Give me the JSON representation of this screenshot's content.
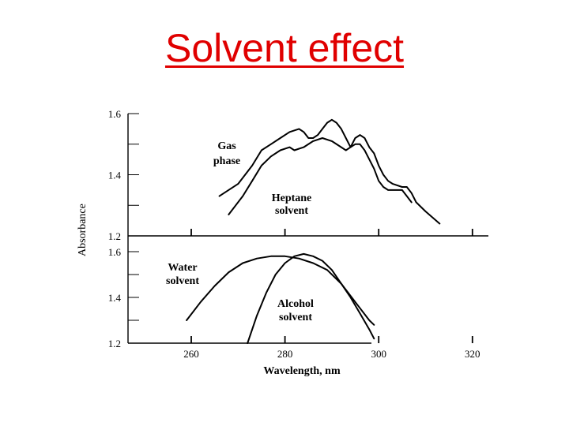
{
  "slide": {
    "title": "Solvent effect"
  },
  "chart_data": [
    {
      "type": "line",
      "panel": "upper",
      "ylabel": "Absorbance",
      "xlim": [
        250,
        325
      ],
      "ylim": [
        1.2,
        1.6
      ],
      "y_ticks": [
        "1.6",
        "1.4",
        "1.2"
      ],
      "grid": false,
      "series": [
        {
          "name": "Gas phase",
          "points": [
            [
              266,
              1.33
            ],
            [
              270,
              1.37
            ],
            [
              273,
              1.43
            ],
            [
              275,
              1.48
            ],
            [
              277,
              1.5
            ],
            [
              279,
              1.52
            ],
            [
              281,
              1.54
            ],
            [
              283,
              1.55
            ],
            [
              284,
              1.54
            ],
            [
              285,
              1.52
            ],
            [
              286,
              1.52
            ],
            [
              287,
              1.53
            ],
            [
              288,
              1.55
            ],
            [
              289,
              1.57
            ],
            [
              290,
              1.58
            ],
            [
              291,
              1.57
            ],
            [
              292,
              1.55
            ],
            [
              293,
              1.52
            ],
            [
              294,
              1.49
            ],
            [
              295,
              1.52
            ],
            [
              296,
              1.53
            ],
            [
              297,
              1.52
            ],
            [
              298,
              1.49
            ],
            [
              299,
              1.47
            ],
            [
              300,
              1.43
            ],
            [
              301,
              1.4
            ],
            [
              302,
              1.38
            ],
            [
              303,
              1.37
            ],
            [
              305,
              1.36
            ],
            [
              306,
              1.36
            ],
            [
              307,
              1.34
            ],
            [
              308,
              1.31
            ],
            [
              310,
              1.28
            ],
            [
              313,
              1.24
            ]
          ]
        },
        {
          "name": "Heptane solvent",
          "points": [
            [
              268,
              1.27
            ],
            [
              271,
              1.33
            ],
            [
              273,
              1.38
            ],
            [
              275,
              1.43
            ],
            [
              277,
              1.46
            ],
            [
              279,
              1.48
            ],
            [
              281,
              1.49
            ],
            [
              282,
              1.48
            ],
            [
              284,
              1.49
            ],
            [
              286,
              1.51
            ],
            [
              288,
              1.52
            ],
            [
              290,
              1.51
            ],
            [
              292,
              1.49
            ],
            [
              293,
              1.48
            ],
            [
              294,
              1.49
            ],
            [
              295,
              1.5
            ],
            [
              296,
              1.5
            ],
            [
              297,
              1.48
            ],
            [
              298,
              1.45
            ],
            [
              299,
              1.42
            ],
            [
              300,
              1.38
            ],
            [
              301,
              1.36
            ],
            [
              302,
              1.35
            ],
            [
              303,
              1.35
            ],
            [
              305,
              1.35
            ],
            [
              306,
              1.33
            ],
            [
              307,
              1.31
            ]
          ]
        }
      ]
    },
    {
      "type": "line",
      "panel": "lower",
      "xlabel": "Wavelength, nm",
      "xlim": [
        250,
        325
      ],
      "ylim": [
        1.2,
        1.6
      ],
      "x_ticks": [
        260,
        280,
        300,
        320
      ],
      "y_ticks": [
        "1.6",
        "1.4",
        "1.2"
      ],
      "grid": false,
      "series": [
        {
          "name": "Water solvent",
          "points": [
            [
              259,
              1.3
            ],
            [
              262,
              1.38
            ],
            [
              265,
              1.45
            ],
            [
              268,
              1.51
            ],
            [
              271,
              1.55
            ],
            [
              274,
              1.57
            ],
            [
              277,
              1.58
            ],
            [
              280,
              1.58
            ],
            [
              283,
              1.57
            ],
            [
              286,
              1.55
            ],
            [
              289,
              1.52
            ],
            [
              292,
              1.46
            ],
            [
              295,
              1.38
            ],
            [
              298,
              1.3
            ],
            [
              299,
              1.28
            ]
          ]
        },
        {
          "name": "Alcohol solvent",
          "points": [
            [
              272,
              1.2
            ],
            [
              274,
              1.32
            ],
            [
              276,
              1.42
            ],
            [
              278,
              1.5
            ],
            [
              280,
              1.55
            ],
            [
              282,
              1.58
            ],
            [
              284,
              1.59
            ],
            [
              286,
              1.58
            ],
            [
              288,
              1.56
            ],
            [
              290,
              1.52
            ],
            [
              292,
              1.46
            ],
            [
              294,
              1.4
            ],
            [
              296,
              1.33
            ],
            [
              298,
              1.26
            ],
            [
              299,
              1.22
            ]
          ]
        }
      ]
    }
  ],
  "labels": {
    "gas_phase_1": "Gas",
    "gas_phase_2": "phase",
    "heptane_1": "Heptane",
    "heptane_2": "solvent",
    "water_1": "Water",
    "water_2": "solvent",
    "alcohol_1": "Alcohol",
    "alcohol_2": "solvent"
  }
}
